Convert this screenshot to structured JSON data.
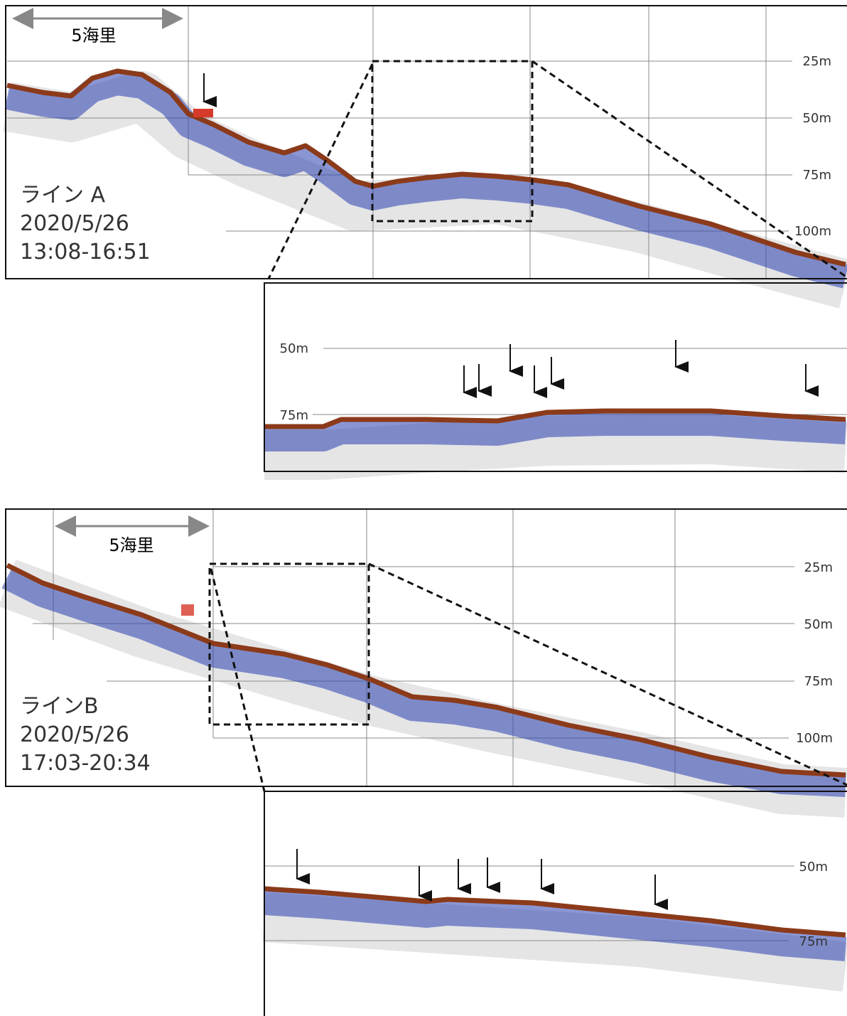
{
  "panel_a": {
    "scale": "5海里",
    "title": "ライン A",
    "date": "2020/5/26",
    "time": "13:08-16:51",
    "depths": [
      "25m",
      "50m",
      "75m",
      "100m"
    ],
    "zoom_depths": [
      "50m",
      "75m"
    ]
  },
  "panel_b": {
    "scale": "5海里",
    "title": "ラインB",
    "date": "2020/5/26",
    "time": "17:03-20:34",
    "depths": [
      "25m",
      "50m",
      "75m",
      "100m"
    ],
    "zoom_depths": [
      "50m",
      "75m"
    ]
  }
}
